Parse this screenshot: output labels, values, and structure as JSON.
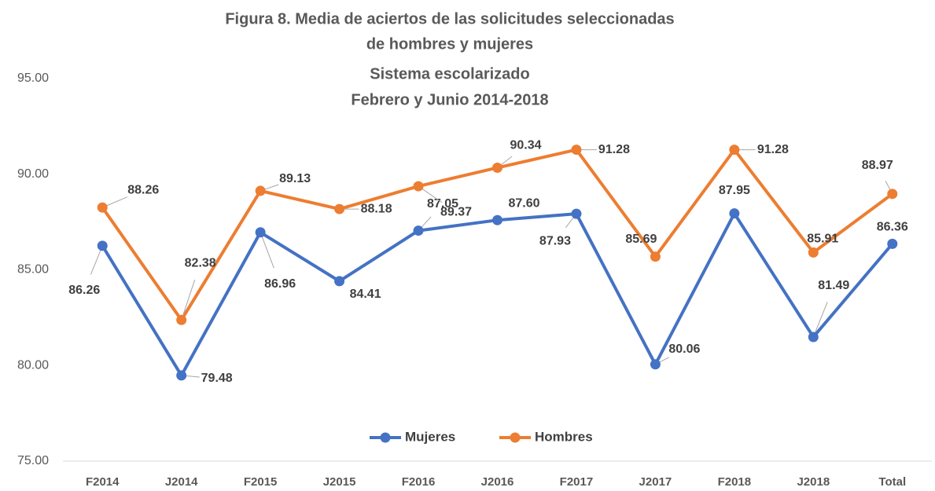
{
  "chart_data": {
    "type": "line",
    "title": [
      "Figura 8.  Media de aciertos de las solicitudes seleccionadas",
      "de hombres y mujeres",
      "Sistema escolarizado",
      "Febrero y Junio  2014-2018"
    ],
    "categories": [
      "F2014",
      "J2014",
      "F2015",
      "J2015",
      "F2016",
      "J2016",
      "F2017",
      "J2017",
      "F2018",
      "J2018",
      "Total"
    ],
    "series": [
      {
        "name": "Mujeres",
        "color": "#4472c4",
        "values": [
          86.26,
          79.48,
          86.96,
          84.41,
          87.05,
          87.6,
          87.93,
          80.06,
          87.95,
          81.49,
          86.36
        ],
        "value_labels": [
          "86.26",
          "79.48",
          "86.96",
          "84.41",
          "87.05",
          "87.60",
          "87.93",
          "80.06",
          "87.95",
          "81.49",
          "86.36"
        ]
      },
      {
        "name": "Hombres",
        "color": "#ed7d31",
        "values": [
          88.26,
          82.38,
          89.13,
          88.18,
          89.37,
          90.34,
          91.28,
          85.69,
          91.28,
          85.91,
          88.97
        ],
        "value_labels": [
          "88.26",
          "82.38",
          "89.13",
          "88.18",
          "89.37",
          "90.34",
          "91.28",
          "85.69",
          "91.28",
          "85.91",
          "88.97"
        ]
      }
    ],
    "ylim": [
      75,
      95
    ],
    "yticks": [
      {
        "value": 75,
        "label": "75.00"
      },
      {
        "value": 80,
        "label": "80.00"
      },
      {
        "value": 85,
        "label": "85.00"
      },
      {
        "value": 90,
        "label": "90.00"
      },
      {
        "value": 95,
        "label": "95.00"
      }
    ],
    "grid": false,
    "legend": "bottom"
  }
}
